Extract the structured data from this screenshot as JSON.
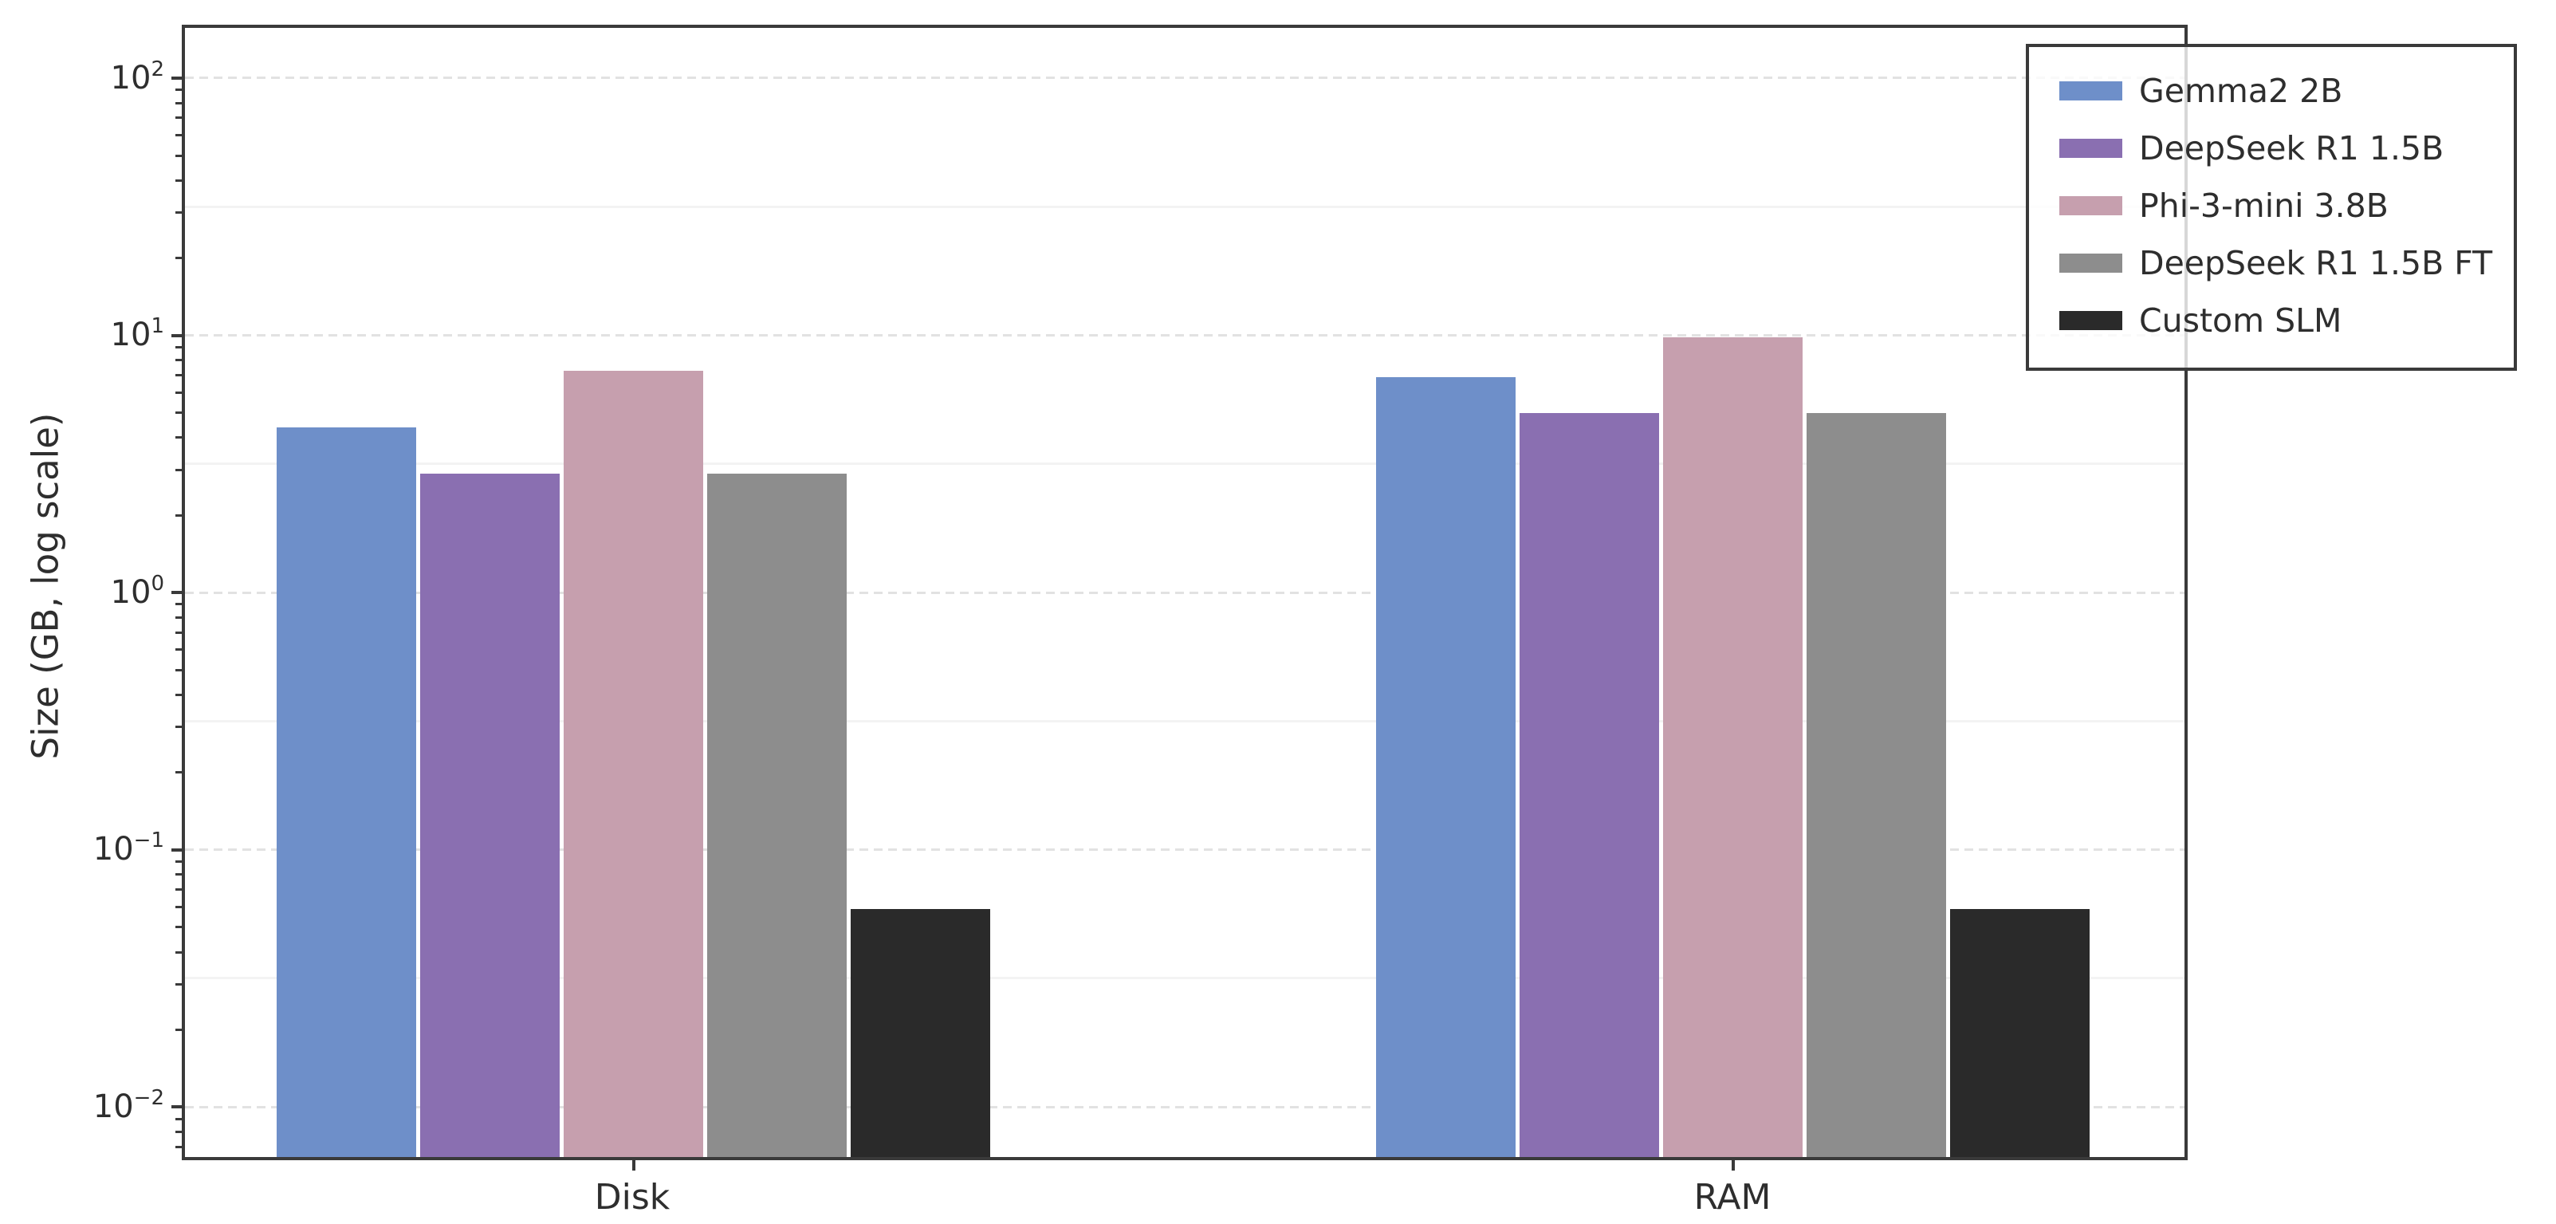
{
  "figure": {
    "background": "#ffffff"
  },
  "y_axis": {
    "label": "Size (GB, log scale)",
    "scale": "log",
    "ticks": [
      {
        "base": "10",
        "exp": "2",
        "value": 100
      },
      {
        "base": "10",
        "exp": "1",
        "value": 10
      },
      {
        "base": "10",
        "exp": "0",
        "value": 1
      },
      {
        "base": "10",
        "exp": "−1",
        "value": 0.1
      },
      {
        "base": "10",
        "exp": "−2",
        "value": 0.01
      }
    ]
  },
  "x_axis": {
    "categories": [
      "Disk",
      "RAM"
    ]
  },
  "legend": {
    "position": "upper right"
  },
  "chart_data": {
    "type": "bar",
    "categories": [
      "Disk",
      "RAM"
    ],
    "series": [
      {
        "name": "Gemma2 2B",
        "color": "#6e8fc9",
        "values": [
          4.4,
          6.9
        ]
      },
      {
        "name": "DeepSeek R1 1.5B",
        "color": "#8a6fb1",
        "values": [
          2.9,
          5.0
        ]
      },
      {
        "name": "Phi-3-mini 3.8B",
        "color": "#c69fae",
        "values": [
          7.3,
          9.8
        ]
      },
      {
        "name": "DeepSeek R1 1.5B FT",
        "color": "#8d8d8d",
        "values": [
          2.9,
          5.0
        ]
      },
      {
        "name": "Custom SLM",
        "color": "#2a2a2a",
        "values": [
          0.059,
          0.059
        ]
      }
    ],
    "title": "",
    "xlabel": "",
    "ylabel": "Size (GB, log scale)",
    "ylim": [
      0.0063,
      159
    ],
    "grid": {
      "major": "dashed horizontal at each decade",
      "minor": "solid light at half decades"
    },
    "legend_position": "upper right"
  }
}
